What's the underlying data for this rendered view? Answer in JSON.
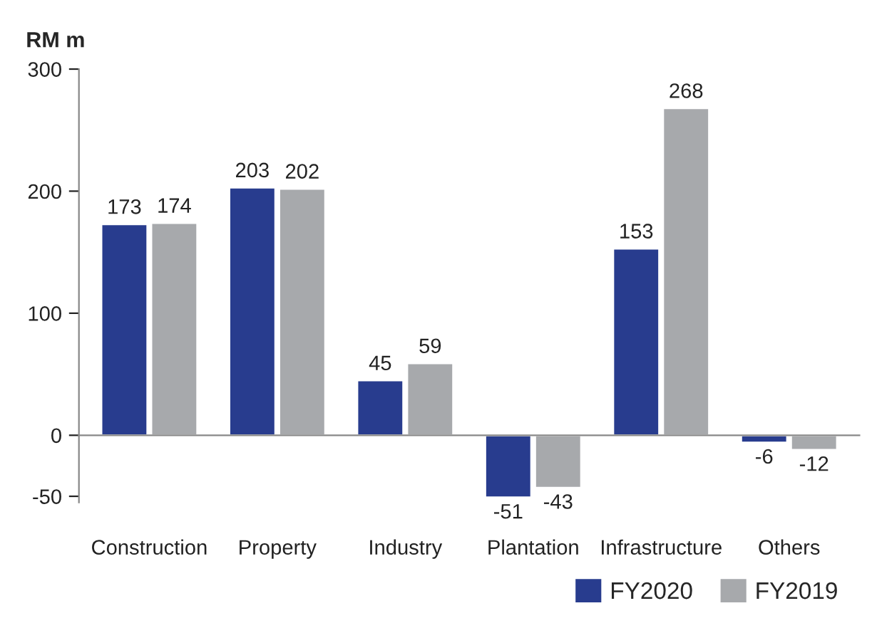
{
  "chart_data": {
    "type": "bar",
    "ylabel": "RM m",
    "categories": [
      "Construction",
      "Property",
      "Industry",
      "Plantation",
      "Infrastructure",
      "Others"
    ],
    "series": [
      {
        "name": "FY2020",
        "color": "#283c8e",
        "values": [
          173,
          203,
          45,
          -51,
          153,
          -6
        ]
      },
      {
        "name": "FY2019",
        "color": "#a7a9ac",
        "values": [
          174,
          202,
          59,
          -43,
          268,
          -12
        ]
      }
    ],
    "ylim": [
      -55,
      300
    ],
    "yticks": [
      -50,
      0,
      100,
      200,
      300
    ],
    "data_labels": true,
    "legend": "bottom right"
  }
}
